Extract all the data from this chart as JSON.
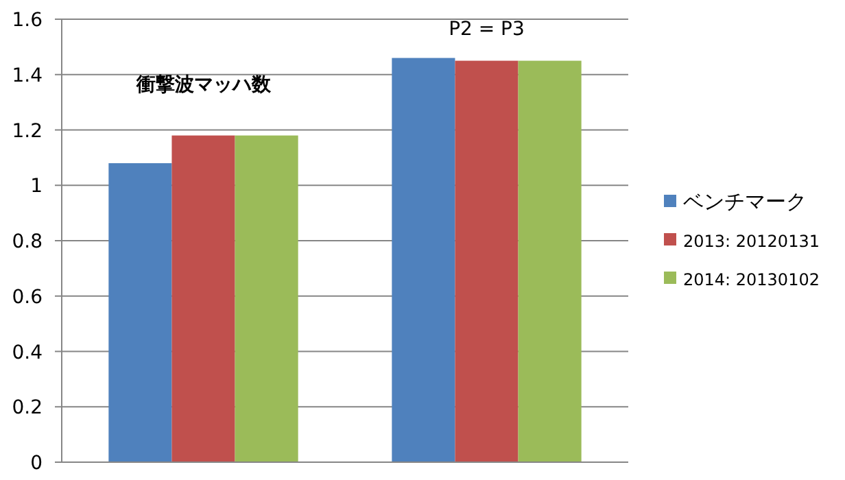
{
  "chart_data": {
    "type": "bar",
    "categories": [
      null,
      null
    ],
    "series": [
      {
        "name": "ベンチマーク",
        "color": "#4f81bd",
        "values": [
          1.08,
          1.46
        ]
      },
      {
        "name": "2013: 20120131",
        "color": "#c0504d",
        "values": [
          1.18,
          1.45
        ]
      },
      {
        "name": "2014: 20130102",
        "color": "#9bbb59",
        "values": [
          1.18,
          1.45
        ]
      }
    ],
    "ylim": [
      0,
      1.6
    ],
    "yticks": [
      0,
      0.2,
      0.4,
      0.6,
      0.8,
      1,
      1.2,
      1.4,
      1.6
    ],
    "grid": "y",
    "legend": "right",
    "annotations": [
      "衝撃波マッハ数",
      "P2 = P3"
    ]
  }
}
